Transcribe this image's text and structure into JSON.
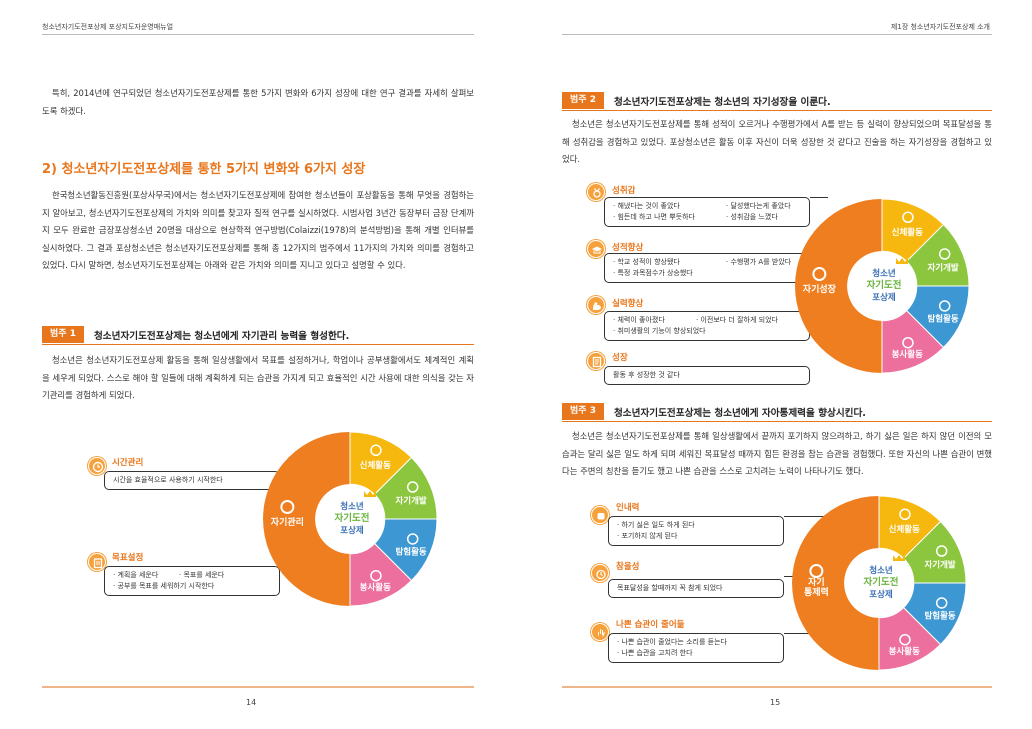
{
  "left": {
    "header": "청소년자기도전포상제 포상지도자운영매뉴얼",
    "intro": "특히, 2014년에 연구되었던 청소년자기도전포상제를 통한 5가지 변화와 6가지 성장에 대한 연구 결과를 자세히 살펴보도록 하겠다.",
    "section_title": "2) 청소년자기도전포상제를 통한 5가지 변화와 6가지 성장",
    "section_body": "한국청소년활동진흥원(포상사무국)에서는 청소년자기도전포상제에 참여한 청소년들이 포상활동을 통해 무엇을 경험하는지 알아보고, 청소년자기도전포상제의 가치와 의미를 찾고자 질적 연구를 실시하였다. 시범사업 3년간 동장부터 금장 단계까지 모두 완료한 금장포상청소년 20명을 대상으로 현상학적 연구방법(Colaizzi(1978)의 분석방법)을 통해 개별 인터뷰를 실시하였다. 그 결과 포상청소년은 청소년자기도전포상제를 통해 총 12가지의 범주에서 11가지의 가치와 의미를 경험하고 있었다. 다시 말하면, 청소년자기도전포상제는 아래와 같은 가치와 의미를 지니고 있다고 설명할 수 있다.",
    "category": {
      "tag": "범주 1",
      "title": "청소년자기도전포상제는 청소년에게 자기관리 능력을 형성한다.",
      "body": "청소년은 청소년자기도전포상제 활동을 통해 일상생활에서 목표를 설정하거나, 학업이나 공부생활에서도 체계적인 계획을 세우게 되었다. 스스로 해야 할 일들에 대해 계획하게 되는 습관을 가지게 되고 효율적인 시간 사용에 대한 의식을 갖는 자기관리를 경험하게 되었다."
    },
    "items": [
      {
        "title": "시간관리",
        "lines": [
          [
            "시간을 효율적으로 사용하기 시작한다"
          ]
        ]
      },
      {
        "title": "목표설정",
        "lines": [
          [
            "· 계획을 세운다",
            "· 목표를 세운다"
          ],
          [
            "· 공부를 목표를 세워하기 시작한다"
          ]
        ]
      }
    ],
    "wheel_center": "자기관리",
    "page_number": "14"
  },
  "right": {
    "header": "제1장 청소년자기도전포상제 소개",
    "category2": {
      "tag": "범주 2",
      "title": "청소년자기도전포상제는 청소년의 자기성장을 이룬다.",
      "body": "청소년은 청소년자기도전포상제를 통해 성적이 오르거나 수행평가에서 A를 받는 등 실력이 향상되었으며 목표달성을 통해 성취감을 경험하고 있었다. 포상청소년은 활동 이후 자신이 더욱 성장한 것 같다고 진술을 하는 자기성장을 경험하고 있었다."
    },
    "items2": [
      {
        "title": "성취감",
        "lines": [
          [
            "· 해냈다는 것이 좋았다",
            "· 달성했다는게 좋았다"
          ],
          [
            "· 힘든데 하고 나면 뿌듯하다",
            "· 성취감을 느꼈다"
          ]
        ]
      },
      {
        "title": "성적향상",
        "lines": [
          [
            "· 학교 성적이 향상됐다",
            "· 수행평가 A를 받았다"
          ],
          [
            "· 특정 과목점수가 상승했다"
          ]
        ]
      },
      {
        "title": "실력향상",
        "lines": [
          [
            "· 체력이 좋아졌다",
            "· 이전보다 더 잘하게 되었다"
          ],
          [
            "· 취미생활의 기능이 향상되었다"
          ]
        ]
      },
      {
        "title": "성장",
        "lines": [
          [
            "활동 후 성장한 것 같다"
          ]
        ]
      }
    ],
    "wheel2_center": "자기성장",
    "category3": {
      "tag": "범주 3",
      "title": "청소년자기도전포상제는 청소년에게 자아통제력을 향상시킨다.",
      "body": "청소년은 청소년자기도전포상제를 통해 일상생활에서 끝까지 포기하지 않으려하고, 하기 싫은 일은 하지 않던 이전의 모습과는 달리 싫은 일도 하게 되며 세워진 목표달성 때까지 힘든 환경을 참는 습관을 경험했다. 또한 자신의 나쁜 습관이 변했다는 주변의 칭찬을 듣기도 했고 나쁜 습관을 스스로 고치려는 노력이 나타나기도 했다."
    },
    "items3": [
      {
        "title": "인내력",
        "lines": [
          [
            "· 하기 싫은 일도 하게 된다"
          ],
          [
            "· 포기하지 않게 된다"
          ]
        ]
      },
      {
        "title": "참을성",
        "lines": [
          [
            "목표달성을 할때까지 꼭 참게 되었다"
          ]
        ]
      },
      {
        "title": "나쁜 습관이 줄어듦",
        "lines": [
          [
            "· 나쁜 습관이 줄었다는 소리를 듣는다"
          ],
          [
            "· 나쁜 습관을 고치려 한다"
          ]
        ]
      }
    ],
    "wheel3_center": "자기\n통제력",
    "page_number": "15"
  },
  "wheel": {
    "segments": [
      "신체활동",
      "자기개발",
      "탐험활동",
      "봉사활동"
    ],
    "logo": [
      "청소년",
      "자기도전",
      "포상제"
    ],
    "colors": {
      "orange": "#ee7e1f",
      "yellow": "#f6b80f",
      "green": "#8cc63e",
      "blue": "#3d97d3",
      "pink": "#ec6f9e"
    }
  }
}
